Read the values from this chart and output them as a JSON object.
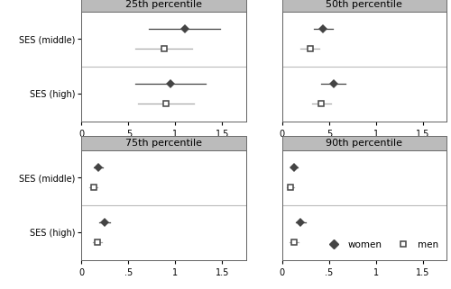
{
  "panels": [
    {
      "title": "25th percentile",
      "xlim": [
        0,
        1.75
      ],
      "xticks": [
        0,
        0.5,
        1.0,
        1.5
      ],
      "xticklabels": [
        "0",
        ".5",
        "1",
        "1.5"
      ],
      "groups": [
        "SES (middle)",
        "SES (high)"
      ],
      "women": {
        "values": [
          1.1,
          0.95
        ],
        "lo": [
          0.72,
          0.58
        ],
        "hi": [
          1.48,
          1.32
        ]
      },
      "men": {
        "values": [
          0.88,
          0.9
        ],
        "lo": [
          0.58,
          0.6
        ],
        "hi": [
          1.18,
          1.2
        ]
      }
    },
    {
      "title": "50th percentile",
      "xlim": [
        0,
        1.75
      ],
      "xticks": [
        0,
        0.5,
        1.0,
        1.5
      ],
      "xticklabels": [
        "0",
        ".5",
        "1",
        "1.5"
      ],
      "groups": [
        "SES (middle)",
        "SES (high)"
      ],
      "women": {
        "values": [
          0.44,
          0.55
        ],
        "lo": [
          0.34,
          0.42
        ],
        "hi": [
          0.54,
          0.68
        ]
      },
      "men": {
        "values": [
          0.3,
          0.42
        ],
        "lo": [
          0.2,
          0.32
        ],
        "hi": [
          0.4,
          0.52
        ]
      }
    },
    {
      "title": "75th percentile",
      "xlim": [
        0,
        1.75
      ],
      "xticks": [
        0,
        0.5,
        1.0,
        1.5
      ],
      "xticklabels": [
        "0",
        ".5",
        "1",
        "1.5"
      ],
      "groups": [
        "SES (middle)",
        "SES (high)"
      ],
      "women": {
        "values": [
          0.18,
          0.25
        ],
        "lo": [
          0.13,
          0.19
        ],
        "hi": [
          0.23,
          0.31
        ]
      },
      "men": {
        "values": [
          0.13,
          0.17
        ],
        "lo": [
          0.09,
          0.12
        ],
        "hi": [
          0.17,
          0.22
        ]
      }
    },
    {
      "title": "90th percentile",
      "xlim": [
        0,
        1.75
      ],
      "xticks": [
        0,
        0.5,
        1.0,
        1.5
      ],
      "xticklabels": [
        "0",
        ".5",
        "1",
        "1.5"
      ],
      "groups": [
        "SES (middle)",
        "SES (high)"
      ],
      "women": {
        "values": [
          0.13,
          0.2
        ],
        "lo": [
          0.09,
          0.15
        ],
        "hi": [
          0.17,
          0.25
        ]
      },
      "men": {
        "values": [
          0.09,
          0.13
        ],
        "lo": [
          0.05,
          0.08
        ],
        "hi": [
          0.13,
          0.18
        ]
      }
    }
  ],
  "women_color": "#444444",
  "men_color": "#aaaaaa",
  "background_color": "#ffffff",
  "header_color": "#bbbbbb",
  "separator_color": "#bbbbbb",
  "figsize": [
    5.0,
    3.21
  ],
  "dpi": 100,
  "label_fontsize": 7,
  "title_fontsize": 8
}
